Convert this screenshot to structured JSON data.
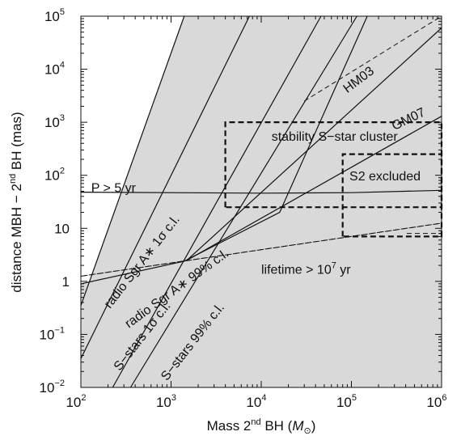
{
  "chart_data": {
    "type": "line",
    "x_scale": "log",
    "y_scale": "log",
    "xlim": [
      100,
      1000000
    ],
    "ylim": [
      0.01,
      100000
    ],
    "grid": false,
    "legend": "none",
    "xlabel": {
      "pre": "Mass 2",
      "sup": "nd",
      "post": " BH (",
      "unit": "M",
      "unit_sub": "⊙",
      "close": ")"
    },
    "ylabel": {
      "pre": "distance MBH − 2",
      "sup": "nd",
      "post": " BH (mas)"
    },
    "x_ticks": [
      {
        "value": 100,
        "base": "10",
        "exp": "2"
      },
      {
        "value": 1000,
        "base": "10",
        "exp": "3"
      },
      {
        "value": 10000,
        "base": "10",
        "exp": "4"
      },
      {
        "value": 100000,
        "base": "10",
        "exp": "5"
      },
      {
        "value": 1000000,
        "base": "10",
        "exp": "6"
      }
    ],
    "y_ticks": [
      {
        "value": 0.01,
        "base": "10",
        "exp": "−2"
      },
      {
        "value": 0.1,
        "base": "10",
        "exp": "−1"
      },
      {
        "value": 1,
        "base": "1",
        "exp": ""
      },
      {
        "value": 10,
        "base": "10",
        "exp": ""
      },
      {
        "value": 100,
        "base": "10",
        "exp": "2"
      },
      {
        "value": 1000,
        "base": "10",
        "exp": "3"
      },
      {
        "value": 10000,
        "base": "10",
        "exp": "4"
      },
      {
        "value": 100000,
        "base": "10",
        "exp": "5"
      }
    ],
    "shaded_colors": {
      "fill": "#d9d9d9",
      "line": "#111111"
    },
    "regions": [
      {
        "name": "excluded-left",
        "polygon": [
          [
            100,
            0.01
          ],
          [
            100,
            0.35
          ],
          [
            1400,
            100000
          ],
          [
            1000000,
            100000
          ],
          [
            1000000,
            0.01
          ]
        ]
      },
      {
        "name": "allowed-band",
        "polygon": [
          [
            100,
            0.35
          ],
          [
            100,
            0.9
          ],
          [
            1400,
            2.4
          ],
          [
            16000,
            20
          ],
          [
            150000,
            100000
          ],
          [
            1400,
            100000
          ]
        ]
      }
    ],
    "lines": [
      {
        "name": "radio-sgr-1sigma",
        "style": "solid",
        "points": [
          [
            100,
            0.35
          ],
          [
            1400,
            100000
          ]
        ]
      },
      {
        "name": "radio-sgr-99",
        "style": "solid",
        "points": [
          [
            100,
            0.035
          ],
          [
            7400,
            100000
          ]
        ]
      },
      {
        "name": "s-stars-1sigma",
        "style": "solid",
        "points": [
          [
            225,
            0.01
          ],
          [
            46000,
            100000
          ]
        ]
      },
      {
        "name": "s-stars-99",
        "style": "solid",
        "points": [
          [
            355,
            0.01
          ],
          [
            115000,
            100000
          ]
        ]
      },
      {
        "name": "radio-sgr-99-upper",
        "style": "solid",
        "points": [
          [
            100,
            0.9
          ],
          [
            1400,
            2.4
          ],
          [
            16000,
            20
          ],
          [
            150000,
            100000
          ]
        ]
      },
      {
        "name": "hm03",
        "style": "solid",
        "points": [
          [
            1500,
            2.5
          ],
          [
            1000000,
            60000
          ]
        ]
      },
      {
        "name": "gm07",
        "style": "solid",
        "points": [
          [
            1500,
            2.5
          ],
          [
            1000000,
            1300
          ]
        ]
      },
      {
        "name": "p-5yr",
        "style": "solid",
        "points": [
          [
            100,
            48
          ],
          [
            10000,
            46
          ],
          [
            100000,
            47
          ],
          [
            1000000,
            52
          ]
        ]
      },
      {
        "name": "lifetime",
        "style": "dashed",
        "points": [
          [
            100,
            1.25
          ],
          [
            1000000,
            12.5
          ]
        ]
      },
      {
        "name": "lifetime-upper",
        "style": "dashed",
        "points": [
          [
            30000,
            2500
          ],
          [
            1000000,
            100000
          ]
        ]
      },
      {
        "name": "excluded-outline",
        "style": "dashed",
        "points": [
          [
            100,
            0.01
          ],
          [
            100,
            1.25
          ],
          [
            1000000,
            12.5
          ],
          [
            1000000,
            0.01
          ],
          [
            100,
            0.01
          ]
        ]
      },
      {
        "name": "top-right-box",
        "style": "dashed",
        "points": [
          [
            400000,
            100000
          ],
          [
            1000000,
            100000
          ],
          [
            1000000,
            8
          ],
          [
            400000,
            8
          ]
        ]
      },
      {
        "name": "stability-box",
        "style": "dashed-thick",
        "points": [
          [
            4000,
            25
          ],
          [
            4000,
            1000
          ],
          [
            1000000,
            1000
          ],
          [
            1000000,
            25
          ],
          [
            4000,
            25
          ]
        ]
      },
      {
        "name": "s2-excluded-box",
        "style": "dashed-thick",
        "points": [
          [
            80000,
            7
          ],
          [
            80000,
            250
          ],
          [
            1000000,
            250
          ],
          [
            1000000,
            7
          ],
          [
            80000,
            7
          ]
        ]
      }
    ],
    "annotations": [
      {
        "id": "p5",
        "text": "P > 5 yr",
        "at": [
          130,
          48
        ],
        "rotate": 0
      },
      {
        "id": "hm03",
        "text": "HM03",
        "at": [
          90000,
          3500
        ],
        "rotate": -37
      },
      {
        "id": "gm07",
        "text": "GM07",
        "at": [
          300000,
          700
        ],
        "rotate": -26
      },
      {
        "id": "stability",
        "text": "stability S−star cluster",
        "at": [
          13000,
          450
        ],
        "rotate": 0
      },
      {
        "id": "s2",
        "text": "S2 excluded",
        "at": [
          95000,
          80
        ],
        "rotate": 0
      },
      {
        "id": "lifetime",
        "text": "lifetime > 10",
        "sup": "7",
        "post": " yr",
        "at": [
          10000,
          1.4
        ],
        "rotate": 0
      },
      {
        "id": "radio1",
        "text": "radio Sgr A∗ 1σ c.l.",
        "at": [
          210,
          0.3
        ],
        "rotate": -52
      },
      {
        "id": "radio99",
        "text": "radio Sgr A∗ 99% c.l.",
        "at": [
          340,
          0.13
        ],
        "rotate": -36
      },
      {
        "id": "sstars1",
        "text": "S−stars 1σ c.l.",
        "at": [
          270,
          0.02
        ],
        "rotate": -52
      },
      {
        "id": "sstars99",
        "text": "S−stars 99% c.l.",
        "at": [
          900,
          0.013
        ],
        "rotate": -52
      }
    ]
  }
}
